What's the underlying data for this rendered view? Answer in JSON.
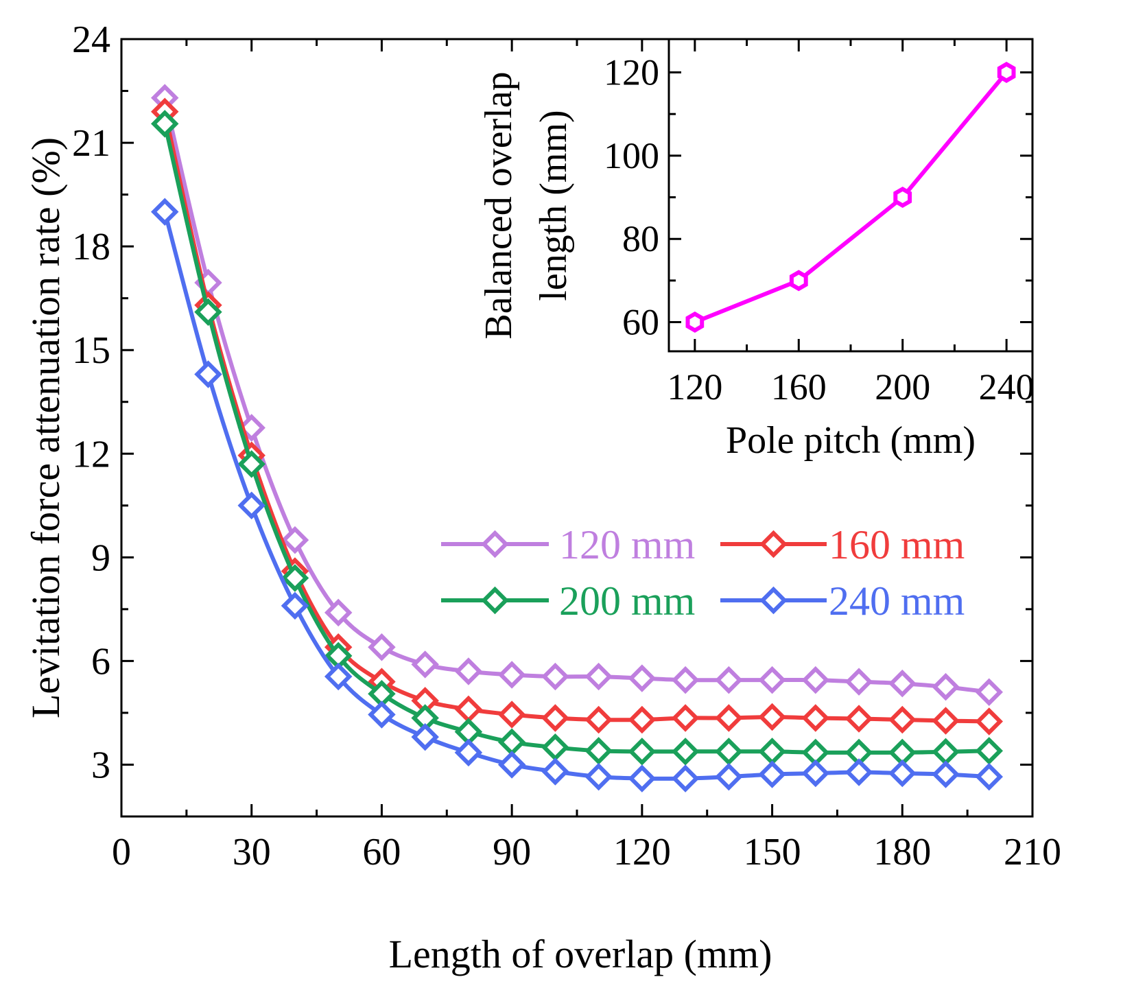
{
  "chart_data": [
    {
      "type": "line",
      "title": "",
      "xlabel": "Length of overlap (mm)",
      "ylabel": "Levitation force attenuation rate (%)",
      "xlim": [
        0,
        210
      ],
      "ylim": [
        1.5,
        24
      ],
      "xticks": [
        0,
        30,
        60,
        90,
        120,
        150,
        180,
        210
      ],
      "xtick_labels": [
        "0",
        "30",
        "60",
        "90",
        "120",
        "150",
        "180",
        "210"
      ],
      "yticks": [
        3,
        6,
        9,
        12,
        15,
        18,
        21,
        24
      ],
      "ytick_labels": [
        "3",
        "6",
        "9",
        "12",
        "15",
        "18",
        "21",
        "24"
      ],
      "x": [
        10,
        20,
        30,
        40,
        50,
        60,
        70,
        80,
        90,
        100,
        110,
        120,
        130,
        140,
        150,
        160,
        170,
        180,
        190,
        200
      ],
      "series": [
        {
          "name": "120 mm",
          "color": "#bf7fdf",
          "marker": "diamond",
          "values": [
            22.3,
            16.95,
            12.75,
            9.5,
            7.4,
            6.4,
            5.9,
            5.7,
            5.6,
            5.55,
            5.55,
            5.5,
            5.45,
            5.45,
            5.45,
            5.45,
            5.4,
            5.35,
            5.25,
            5.1
          ]
        },
        {
          "name": "160 mm",
          "color": "#f03c3c",
          "marker": "diamond",
          "values": [
            21.9,
            16.3,
            11.95,
            8.6,
            6.4,
            5.4,
            4.85,
            4.6,
            4.45,
            4.35,
            4.3,
            4.3,
            4.35,
            4.35,
            4.38,
            4.35,
            4.33,
            4.3,
            4.27,
            4.25
          ]
        },
        {
          "name": "200 mm",
          "color": "#1aa05a",
          "marker": "diamond",
          "values": [
            21.55,
            16.1,
            11.7,
            8.4,
            6.15,
            5.05,
            4.35,
            3.95,
            3.65,
            3.5,
            3.4,
            3.38,
            3.38,
            3.38,
            3.38,
            3.35,
            3.35,
            3.35,
            3.37,
            3.4
          ]
        },
        {
          "name": "240 mm",
          "color": "#4f6ef0",
          "marker": "diamond",
          "values": [
            19.0,
            14.3,
            10.5,
            7.6,
            5.55,
            4.45,
            3.8,
            3.35,
            3.0,
            2.8,
            2.65,
            2.6,
            2.6,
            2.65,
            2.72,
            2.75,
            2.78,
            2.75,
            2.72,
            2.65
          ]
        }
      ],
      "legend_position": "center-right"
    },
    {
      "type": "line",
      "title": "",
      "xlabel": "Pole pitch (mm)",
      "ylabel": "Balanced overlap length (mm)",
      "ylabel_lines": [
        "Balanced overlap",
        "length (mm)"
      ],
      "xlim": [
        110,
        250
      ],
      "ylim": [
        53,
        128
      ],
      "xticks": [
        120,
        160,
        200,
        240
      ],
      "xtick_labels": [
        "120",
        "160",
        "200",
        "240"
      ],
      "yticks": [
        60,
        80,
        100,
        120
      ],
      "ytick_labels": [
        "60",
        "80",
        "100",
        "120"
      ],
      "series": [
        {
          "name": "Balanced overlap length",
          "color": "#ff00ff",
          "marker": "hexagon",
          "x": [
            120,
            160,
            200,
            240
          ],
          "values": [
            60,
            70,
            90,
            120
          ]
        }
      ],
      "position": "top-right inset"
    }
  ]
}
